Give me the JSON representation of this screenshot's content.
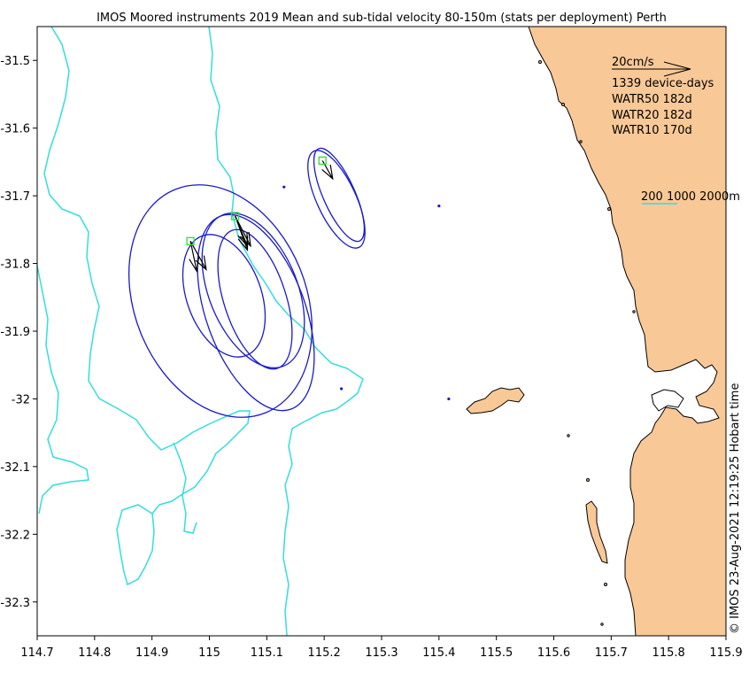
{
  "map": {
    "title": "IMOS Moored instruments 2019 Mean and sub-tidal velocity 80-150m (stats per deployment) Perth",
    "x_ticks": [
      "114.7",
      "114.8",
      "114.9",
      "115",
      "115.1",
      "115.2",
      "115.3",
      "115.4",
      "115.5",
      "115.6",
      "115.7",
      "115.8",
      "115.9"
    ],
    "y_ticks": [
      "-31.5",
      "-31.6",
      "-31.7",
      "-31.8",
      "-31.9",
      "-32",
      "-32.1",
      "-32.2",
      "-32.3"
    ],
    "scale_label": "20cm/s",
    "device_days": "1339 device-days",
    "deployments": [
      "WATR50 182d",
      "WATR20 182d",
      "WATR10 170d"
    ],
    "isobath_legend": "200 1000 2000m",
    "credit": "© IMOS 23-Aug-2021 12:19:25 Hobart time"
  },
  "colors": {
    "land": "#f8c896",
    "coastline": "#000000",
    "isobath": "#33dddd",
    "ellipse": "#1a1acc",
    "mooring_marker": "#33dd33",
    "arrow": "#000000"
  },
  "moorings": [
    {
      "name": "WATR50",
      "lon": 114.967,
      "lat": -31.767,
      "u_cm_s": [
        1.6,
        4.0
      ],
      "v_cm_s": [
        -7.6,
        -7.2
      ]
    },
    {
      "name": "WATR20",
      "lon": 115.045,
      "lat": -31.73,
      "u_cm_s": [
        3.1,
        3.1,
        3.9
      ],
      "v_cm_s": [
        -7.6,
        -8.6,
        -7.6
      ]
    },
    {
      "name": "WATR10",
      "lon": 115.197,
      "lat": -31.648,
      "u_cm_s": [
        2.6
      ],
      "v_cm_s": [
        -4.6
      ]
    }
  ],
  "points": [
    {
      "lon": 115.13,
      "lat": -31.687
    },
    {
      "lon": 115.4,
      "lat": -31.715
    },
    {
      "lon": 115.23,
      "lat": -31.985
    },
    {
      "lon": 115.417,
      "lat": -32.0
    }
  ]
}
